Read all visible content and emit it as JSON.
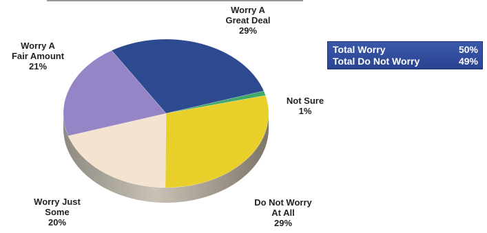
{
  "chart_data": {
    "type": "pie",
    "slices": [
      {
        "key": "great_deal",
        "label_lines": [
          "Worry A",
          "Great Deal"
        ],
        "pct_label": "29%",
        "value": 29,
        "color": "#2d4a91"
      },
      {
        "key": "not_sure",
        "label_lines": [
          "Not Sure"
        ],
        "pct_label": "1%",
        "value": 1,
        "color": "#3fa86a"
      },
      {
        "key": "not_at_all",
        "label_lines": [
          "Do Not Worry",
          "At All"
        ],
        "pct_label": "29%",
        "value": 29,
        "color": "#e8cf2a"
      },
      {
        "key": "just_some",
        "label_lines": [
          "Worry Just",
          "Some"
        ],
        "pct_label": "20%",
        "value": 20,
        "color": "#f4e3cf"
      },
      {
        "key": "fair_amount",
        "label_lines": [
          "Worry A",
          "Fair Amount"
        ],
        "pct_label": "21%",
        "value": 21,
        "color": "#9585c6"
      }
    ]
  },
  "summary": {
    "rows": [
      {
        "label": "Total Worry",
        "value": "50%"
      },
      {
        "label": "Total Do Not Worry",
        "value": "49%"
      }
    ]
  }
}
